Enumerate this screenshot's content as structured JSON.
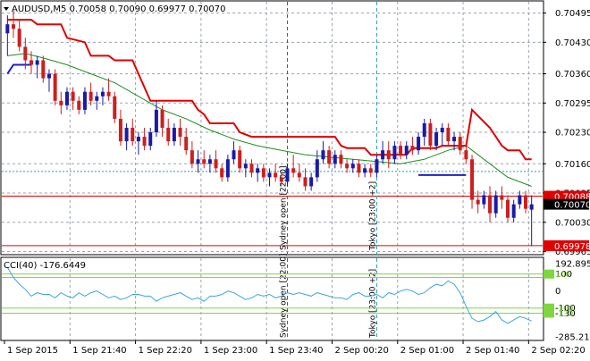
{
  "header": {
    "symbol_line": "AUDUSD,M5  0.70058 0.70090 0.69977 0.70070"
  },
  "colors": {
    "bull_candle": "#1a1aa8",
    "bear_candle": "#cc1f1f",
    "red_line": "#e00000",
    "green_line": "#1f8f1f",
    "blue_line": "#1f1fc8",
    "grid": "#9aa3b0",
    "frame": "#000000",
    "cci_line": "#3aa6d8",
    "cci_level": "#80d640",
    "marker_magenta": "#c0208a",
    "marker_cyan": "#25a0b0"
  },
  "chart_data": [
    {
      "type": "candlestick",
      "title": "AUDUSD,M5",
      "ohlc_readout": {
        "open": 0.70058,
        "high": 0.7009,
        "low": 0.69977,
        "close": 0.7007
      },
      "ylim": [
        0.6996,
        0.7052
      ],
      "y_ticks": [
        "0.70495",
        "0.70430",
        "0.70360",
        "0.70295",
        "0.70230",
        "0.70160",
        "0.70095",
        "0.70030",
        "0.69965"
      ],
      "x_ticks": [
        "1 Sep 2015",
        "1 Sep 21:40",
        "1 Sep 22:20",
        "1 Sep 23:00",
        "1 Sep 23:40",
        "2 Sep 00:20",
        "2 Sep 01:00",
        "2 Sep 01:40",
        "2 Sep 02:20"
      ],
      "price_labels": [
        {
          "label": "0.70088",
          "value": 0.70088,
          "color": "#e00000"
        },
        {
          "label": "0.70070",
          "value": 0.7007,
          "color": "#000000"
        },
        {
          "label": "0.69978",
          "value": 0.69978,
          "color": "#e00000"
        }
      ],
      "session_markers": [
        {
          "label": "Sydney open [22:00]",
          "bar": 47,
          "color": "#c0208a"
        },
        {
          "label": "Tokyo [23:00 +2]",
          "bar": 62,
          "color": "#25a0b0"
        }
      ],
      "candles": [
        {
          "o": 0.7045,
          "h": 0.7049,
          "l": 0.704,
          "c": 0.7047
        },
        {
          "o": 0.7047,
          "h": 0.705,
          "l": 0.7044,
          "c": 0.7046
        },
        {
          "o": 0.7046,
          "h": 0.7048,
          "l": 0.7041,
          "c": 0.7042
        },
        {
          "o": 0.7042,
          "h": 0.7044,
          "l": 0.7037,
          "c": 0.7039
        },
        {
          "o": 0.7039,
          "h": 0.7041,
          "l": 0.7036,
          "c": 0.7038
        },
        {
          "o": 0.7038,
          "h": 0.704,
          "l": 0.7035,
          "c": 0.7039
        },
        {
          "o": 0.7039,
          "h": 0.704,
          "l": 0.7034,
          "c": 0.7035
        },
        {
          "o": 0.7035,
          "h": 0.7037,
          "l": 0.7032,
          "c": 0.7036
        },
        {
          "o": 0.7036,
          "h": 0.7037,
          "l": 0.7029,
          "c": 0.703
        },
        {
          "o": 0.703,
          "h": 0.7032,
          "l": 0.7027,
          "c": 0.7029
        },
        {
          "o": 0.7029,
          "h": 0.7033,
          "l": 0.7028,
          "c": 0.7032
        },
        {
          "o": 0.7032,
          "h": 0.7033,
          "l": 0.7028,
          "c": 0.703
        },
        {
          "o": 0.703,
          "h": 0.7031,
          "l": 0.7027,
          "c": 0.7028
        },
        {
          "o": 0.7028,
          "h": 0.7033,
          "l": 0.7027,
          "c": 0.7032
        },
        {
          "o": 0.7032,
          "h": 0.7034,
          "l": 0.7029,
          "c": 0.703
        },
        {
          "o": 0.703,
          "h": 0.7032,
          "l": 0.7028,
          "c": 0.7031
        },
        {
          "o": 0.7031,
          "h": 0.7033,
          "l": 0.7029,
          "c": 0.7032
        },
        {
          "o": 0.7032,
          "h": 0.7035,
          "l": 0.703,
          "c": 0.7031
        },
        {
          "o": 0.7031,
          "h": 0.7032,
          "l": 0.7025,
          "c": 0.7026
        },
        {
          "o": 0.7026,
          "h": 0.7028,
          "l": 0.702,
          "c": 0.7021
        },
        {
          "o": 0.7021,
          "h": 0.7025,
          "l": 0.7019,
          "c": 0.7024
        },
        {
          "o": 0.7024,
          "h": 0.7026,
          "l": 0.702,
          "c": 0.7021
        },
        {
          "o": 0.7021,
          "h": 0.7023,
          "l": 0.7018,
          "c": 0.7022
        },
        {
          "o": 0.7022,
          "h": 0.7024,
          "l": 0.7019,
          "c": 0.702
        },
        {
          "o": 0.702,
          "h": 0.7024,
          "l": 0.7019,
          "c": 0.7023
        },
        {
          "o": 0.7023,
          "h": 0.703,
          "l": 0.7022,
          "c": 0.7028
        },
        {
          "o": 0.7028,
          "h": 0.7029,
          "l": 0.7022,
          "c": 0.7024
        },
        {
          "o": 0.7024,
          "h": 0.7026,
          "l": 0.702,
          "c": 0.7021
        },
        {
          "o": 0.7021,
          "h": 0.7025,
          "l": 0.702,
          "c": 0.7024
        },
        {
          "o": 0.7024,
          "h": 0.7026,
          "l": 0.702,
          "c": 0.7022
        },
        {
          "o": 0.7022,
          "h": 0.7024,
          "l": 0.7018,
          "c": 0.7019
        },
        {
          "o": 0.7019,
          "h": 0.7021,
          "l": 0.7015,
          "c": 0.7016
        },
        {
          "o": 0.7016,
          "h": 0.7019,
          "l": 0.7014,
          "c": 0.7017
        },
        {
          "o": 0.7017,
          "h": 0.7019,
          "l": 0.7015,
          "c": 0.7016
        },
        {
          "o": 0.7016,
          "h": 0.7018,
          "l": 0.7014,
          "c": 0.7017
        },
        {
          "o": 0.7017,
          "h": 0.7019,
          "l": 0.7014,
          "c": 0.7015
        },
        {
          "o": 0.7015,
          "h": 0.7016,
          "l": 0.7012,
          "c": 0.7013
        },
        {
          "o": 0.7013,
          "h": 0.7018,
          "l": 0.7012,
          "c": 0.7017
        },
        {
          "o": 0.7017,
          "h": 0.7021,
          "l": 0.7016,
          "c": 0.7019
        },
        {
          "o": 0.7019,
          "h": 0.702,
          "l": 0.7014,
          "c": 0.7015
        },
        {
          "o": 0.7015,
          "h": 0.7017,
          "l": 0.7013,
          "c": 0.7016
        },
        {
          "o": 0.7016,
          "h": 0.7017,
          "l": 0.7013,
          "c": 0.7014
        },
        {
          "o": 0.7014,
          "h": 0.7016,
          "l": 0.7012,
          "c": 0.7015
        },
        {
          "o": 0.7015,
          "h": 0.7016,
          "l": 0.7012,
          "c": 0.7013
        },
        {
          "o": 0.7013,
          "h": 0.7015,
          "l": 0.7011,
          "c": 0.7014
        },
        {
          "o": 0.7014,
          "h": 0.7016,
          "l": 0.7012,
          "c": 0.7013
        },
        {
          "o": 0.7013,
          "h": 0.7014,
          "l": 0.7011,
          "c": 0.7012
        },
        {
          "o": 0.7012,
          "h": 0.7016,
          "l": 0.7011,
          "c": 0.7015
        },
        {
          "o": 0.7015,
          "h": 0.7018,
          "l": 0.7013,
          "c": 0.7014
        },
        {
          "o": 0.7014,
          "h": 0.7016,
          "l": 0.7012,
          "c": 0.7013
        },
        {
          "o": 0.7013,
          "h": 0.7015,
          "l": 0.701,
          "c": 0.7011
        },
        {
          "o": 0.7011,
          "h": 0.7014,
          "l": 0.701,
          "c": 0.7013
        },
        {
          "o": 0.7013,
          "h": 0.7019,
          "l": 0.7012,
          "c": 0.7017
        },
        {
          "o": 0.7017,
          "h": 0.7021,
          "l": 0.7016,
          "c": 0.7019
        },
        {
          "o": 0.7019,
          "h": 0.702,
          "l": 0.7015,
          "c": 0.7016
        },
        {
          "o": 0.7016,
          "h": 0.7019,
          "l": 0.7015,
          "c": 0.7018
        },
        {
          "o": 0.7018,
          "h": 0.7019,
          "l": 0.7015,
          "c": 0.7016
        },
        {
          "o": 0.7016,
          "h": 0.7017,
          "l": 0.7014,
          "c": 0.7015
        },
        {
          "o": 0.7015,
          "h": 0.7017,
          "l": 0.7014,
          "c": 0.7016
        },
        {
          "o": 0.7016,
          "h": 0.7017,
          "l": 0.7013,
          "c": 0.7014
        },
        {
          "o": 0.7014,
          "h": 0.7016,
          "l": 0.7013,
          "c": 0.7015
        },
        {
          "o": 0.7015,
          "h": 0.7016,
          "l": 0.7013,
          "c": 0.7014
        },
        {
          "o": 0.7014,
          "h": 0.7018,
          "l": 0.7013,
          "c": 0.7017
        },
        {
          "o": 0.7017,
          "h": 0.7021,
          "l": 0.7016,
          "c": 0.7019
        },
        {
          "o": 0.7019,
          "h": 0.7021,
          "l": 0.7015,
          "c": 0.7017
        },
        {
          "o": 0.7017,
          "h": 0.7021,
          "l": 0.7016,
          "c": 0.702
        },
        {
          "o": 0.702,
          "h": 0.7021,
          "l": 0.7017,
          "c": 0.7018
        },
        {
          "o": 0.7018,
          "h": 0.7021,
          "l": 0.7017,
          "c": 0.702
        },
        {
          "o": 0.702,
          "h": 0.7022,
          "l": 0.7018,
          "c": 0.7019
        },
        {
          "o": 0.7019,
          "h": 0.7023,
          "l": 0.7018,
          "c": 0.7022
        },
        {
          "o": 0.7022,
          "h": 0.7026,
          "l": 0.702,
          "c": 0.7025
        },
        {
          "o": 0.7025,
          "h": 0.7026,
          "l": 0.7019,
          "c": 0.702
        },
        {
          "o": 0.702,
          "h": 0.7024,
          "l": 0.7019,
          "c": 0.7023
        },
        {
          "o": 0.7023,
          "h": 0.7025,
          "l": 0.702,
          "c": 0.7024
        },
        {
          "o": 0.7024,
          "h": 0.7025,
          "l": 0.702,
          "c": 0.7021
        },
        {
          "o": 0.7021,
          "h": 0.7023,
          "l": 0.7019,
          "c": 0.7022
        },
        {
          "o": 0.7022,
          "h": 0.7023,
          "l": 0.7018,
          "c": 0.7019
        },
        {
          "o": 0.7019,
          "h": 0.702,
          "l": 0.7016,
          "c": 0.7017
        },
        {
          "o": 0.7017,
          "h": 0.7018,
          "l": 0.7006,
          "c": 0.7008
        },
        {
          "o": 0.7008,
          "h": 0.701,
          "l": 0.7005,
          "c": 0.7007
        },
        {
          "o": 0.7007,
          "h": 0.701,
          "l": 0.7006,
          "c": 0.7009
        },
        {
          "o": 0.7009,
          "h": 0.7011,
          "l": 0.7003,
          "c": 0.7005
        },
        {
          "o": 0.7005,
          "h": 0.701,
          "l": 0.7004,
          "c": 0.7009
        },
        {
          "o": 0.7009,
          "h": 0.7011,
          "l": 0.7006,
          "c": 0.7008
        },
        {
          "o": 0.7008,
          "h": 0.7009,
          "l": 0.7003,
          "c": 0.7004
        },
        {
          "o": 0.7004,
          "h": 0.7008,
          "l": 0.7003,
          "c": 0.7007
        },
        {
          "o": 0.7007,
          "h": 0.701,
          "l": 0.7006,
          "c": 0.7009
        },
        {
          "o": 0.7009,
          "h": 0.701,
          "l": 0.7005,
          "c": 0.7006
        },
        {
          "o": 0.70058,
          "h": 0.7009,
          "l": 0.69977,
          "c": 0.7007
        }
      ],
      "red_line": [
        [
          0,
          0.7048
        ],
        [
          4,
          0.7048
        ],
        [
          5,
          0.7047
        ],
        [
          9,
          0.7047
        ],
        [
          10,
          0.7044
        ],
        [
          13,
          0.7043
        ],
        [
          14,
          0.704
        ],
        [
          17,
          0.704
        ],
        [
          18,
          0.7039
        ],
        [
          21,
          0.7039
        ],
        [
          22,
          0.7036
        ],
        [
          24,
          0.703
        ],
        [
          31,
          0.703
        ],
        [
          32,
          0.7028
        ],
        [
          33,
          0.7027
        ],
        [
          34,
          0.7025
        ],
        [
          38,
          0.7025
        ],
        [
          39,
          0.7023
        ],
        [
          41,
          0.7022
        ],
        [
          55,
          0.7022
        ],
        [
          56,
          0.702
        ],
        [
          57,
          0.70195
        ],
        [
          60,
          0.70195
        ],
        [
          61,
          0.7018
        ],
        [
          67,
          0.7018
        ],
        [
          68,
          0.70195
        ],
        [
          72,
          0.70195
        ],
        [
          73,
          0.702
        ],
        [
          77,
          0.702
        ],
        [
          78,
          0.7028
        ],
        [
          81,
          0.7024
        ],
        [
          83,
          0.702
        ],
        [
          84,
          0.7019
        ],
        [
          86,
          0.7019
        ],
        [
          87,
          0.7017
        ],
        [
          88,
          0.7017
        ]
      ],
      "green_line": [
        [
          0,
          0.704
        ],
        [
          3,
          0.70405
        ],
        [
          6,
          0.70395
        ],
        [
          10,
          0.7038
        ],
        [
          14,
          0.7036
        ],
        [
          18,
          0.7034
        ],
        [
          22,
          0.7031
        ],
        [
          26,
          0.7028
        ],
        [
          30,
          0.7026
        ],
        [
          34,
          0.70235
        ],
        [
          38,
          0.70215
        ],
        [
          42,
          0.702
        ],
        [
          46,
          0.7019
        ],
        [
          50,
          0.7018
        ],
        [
          54,
          0.70175
        ],
        [
          58,
          0.7017
        ],
        [
          62,
          0.70165
        ],
        [
          66,
          0.7016
        ],
        [
          70,
          0.7017
        ],
        [
          74,
          0.7019
        ],
        [
          77,
          0.702
        ],
        [
          80,
          0.7017
        ],
        [
          84,
          0.7013
        ],
        [
          88,
          0.7011
        ]
      ],
      "blue_line": [
        [
          0,
          0.7036
        ],
        [
          1,
          0.7038
        ],
        [
          3,
          0.7038
        ],
        [
          4,
          0.7038
        ]
      ],
      "blue_hline": {
        "from": 69,
        "to": 77,
        "value": 0.70135
      },
      "horizontal_lines": [
        {
          "value": 0.70143,
          "style": "dotted",
          "color": "#25a0b0"
        },
        {
          "value": 0.70088,
          "style": "solid",
          "color": "#e00000"
        },
        {
          "value": 0.69978,
          "style": "solid",
          "color": "#e00000"
        }
      ]
    },
    {
      "type": "line",
      "title": "CCI(40) -176.6449",
      "ylim": [
        -285.2173,
        192.895
      ],
      "y_ticks": [
        "192.895",
        "100",
        "0",
        "-100",
        "-130",
        "-285.2173"
      ],
      "levels": [
        100,
        80,
        -100,
        -130
      ],
      "level_badges": [
        "100",
        "-100",
        "-130"
      ],
      "values": [
        140,
        80,
        40,
        10,
        -30,
        -10,
        -20,
        -20,
        -40,
        -10,
        -30,
        -40,
        -10,
        -30,
        -10,
        0,
        -20,
        -40,
        -30,
        -50,
        -40,
        -20,
        -20,
        -30,
        -30,
        -60,
        -40,
        -30,
        -20,
        -10,
        -30,
        -50,
        -40,
        -60,
        -30,
        -30,
        -20,
        0,
        -10,
        -30,
        -50,
        -40,
        -20,
        -30,
        -20,
        -40,
        -30,
        -10,
        -20,
        -10,
        -20,
        -30,
        -10,
        -20,
        -30,
        -40,
        -40,
        -50,
        -20,
        -10,
        -30,
        -30,
        -20,
        -40,
        -10,
        -20,
        0,
        10,
        0,
        -20,
        -10,
        20,
        40,
        30,
        60,
        40,
        -10,
        -90,
        -160,
        -180,
        -170,
        -150,
        -120,
        -170,
        -190,
        -170,
        -150,
        -160,
        -176.6449
      ]
    }
  ]
}
